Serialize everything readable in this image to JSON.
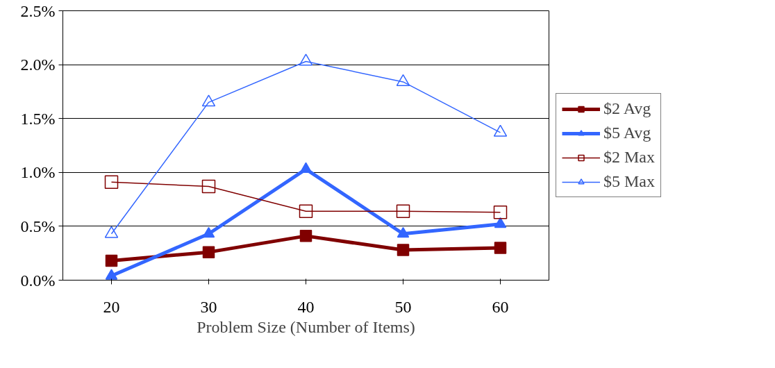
{
  "chart_data": {
    "type": "line",
    "xlabel": "Problem Size (Number of Items)",
    "categories": [
      "20",
      "30",
      "40",
      "50",
      "60"
    ],
    "series": [
      {
        "name": "$2 Avg",
        "color": "#800000",
        "marker": "square",
        "values": [
          0.18,
          0.26,
          0.41,
          0.28,
          0.3
        ]
      },
      {
        "name": "$5 Avg",
        "color": "#3366ff",
        "marker": "triangle",
        "values": [
          0.04,
          0.43,
          1.03,
          0.43,
          0.52
        ]
      },
      {
        "name": "$2 Max",
        "color": "#800000",
        "marker": "square",
        "values": [
          0.91,
          0.87,
          0.64,
          0.64,
          0.63
        ]
      },
      {
        "name": "$5 Max",
        "color": "#3366ff",
        "marker": "triangle",
        "values": [
          0.43,
          1.65,
          2.03,
          1.84,
          1.37
        ]
      }
    ],
    "ylim": [
      0,
      2.5
    ],
    "yticks": [
      {
        "value": 0,
        "label": "0.0%"
      },
      {
        "value": 0.5,
        "label": "0.5%"
      },
      {
        "value": 1,
        "label": "1.0%"
      },
      {
        "value": 1.5,
        "label": "1.5%"
      },
      {
        "value": 2,
        "label": "2.0%"
      },
      {
        "value": 2.5,
        "label": "2.5%"
      }
    ],
    "grid": "y",
    "legend": "right"
  }
}
